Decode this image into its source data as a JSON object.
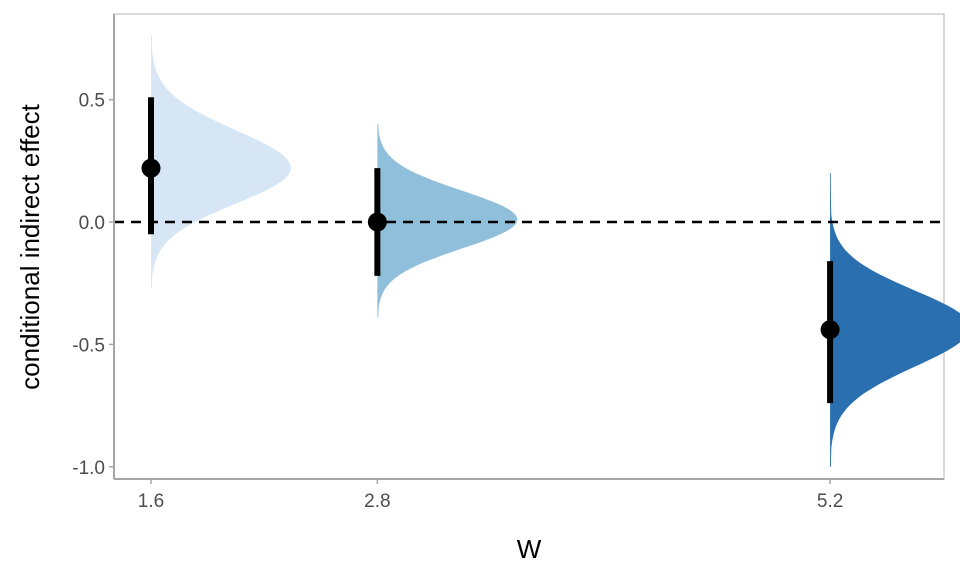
{
  "chart_data": {
    "type": "halfeye",
    "title": "",
    "xlabel": "W",
    "ylabel": "conditional indirect effect",
    "x_ticks": [
      "1.6",
      "2.8",
      "5.2"
    ],
    "y_ticks": [
      "-1.0",
      "-0.5",
      "0.0",
      "0.5"
    ],
    "xlim": [
      1.6,
      6.0
    ],
    "ylim": [
      -1.05,
      0.85
    ],
    "reference_line": 0,
    "grid": false,
    "legend": "none",
    "series": [
      {
        "x": 1.6,
        "median": 0.22,
        "lower": -0.05,
        "upper": 0.51,
        "mode": 0.22,
        "min": -0.27,
        "max": 0.76,
        "color": "#d6e6f5"
      },
      {
        "x": 2.8,
        "median": 0.0,
        "lower": -0.22,
        "upper": 0.22,
        "mode": 0.01,
        "min": -0.39,
        "max": 0.4,
        "color": "#90bfdc"
      },
      {
        "x": 5.2,
        "median": -0.44,
        "lower": -0.74,
        "upper": -0.16,
        "mode": -0.43,
        "min": -1.0,
        "max": 0.2,
        "color": "#2a70b0"
      }
    ]
  }
}
